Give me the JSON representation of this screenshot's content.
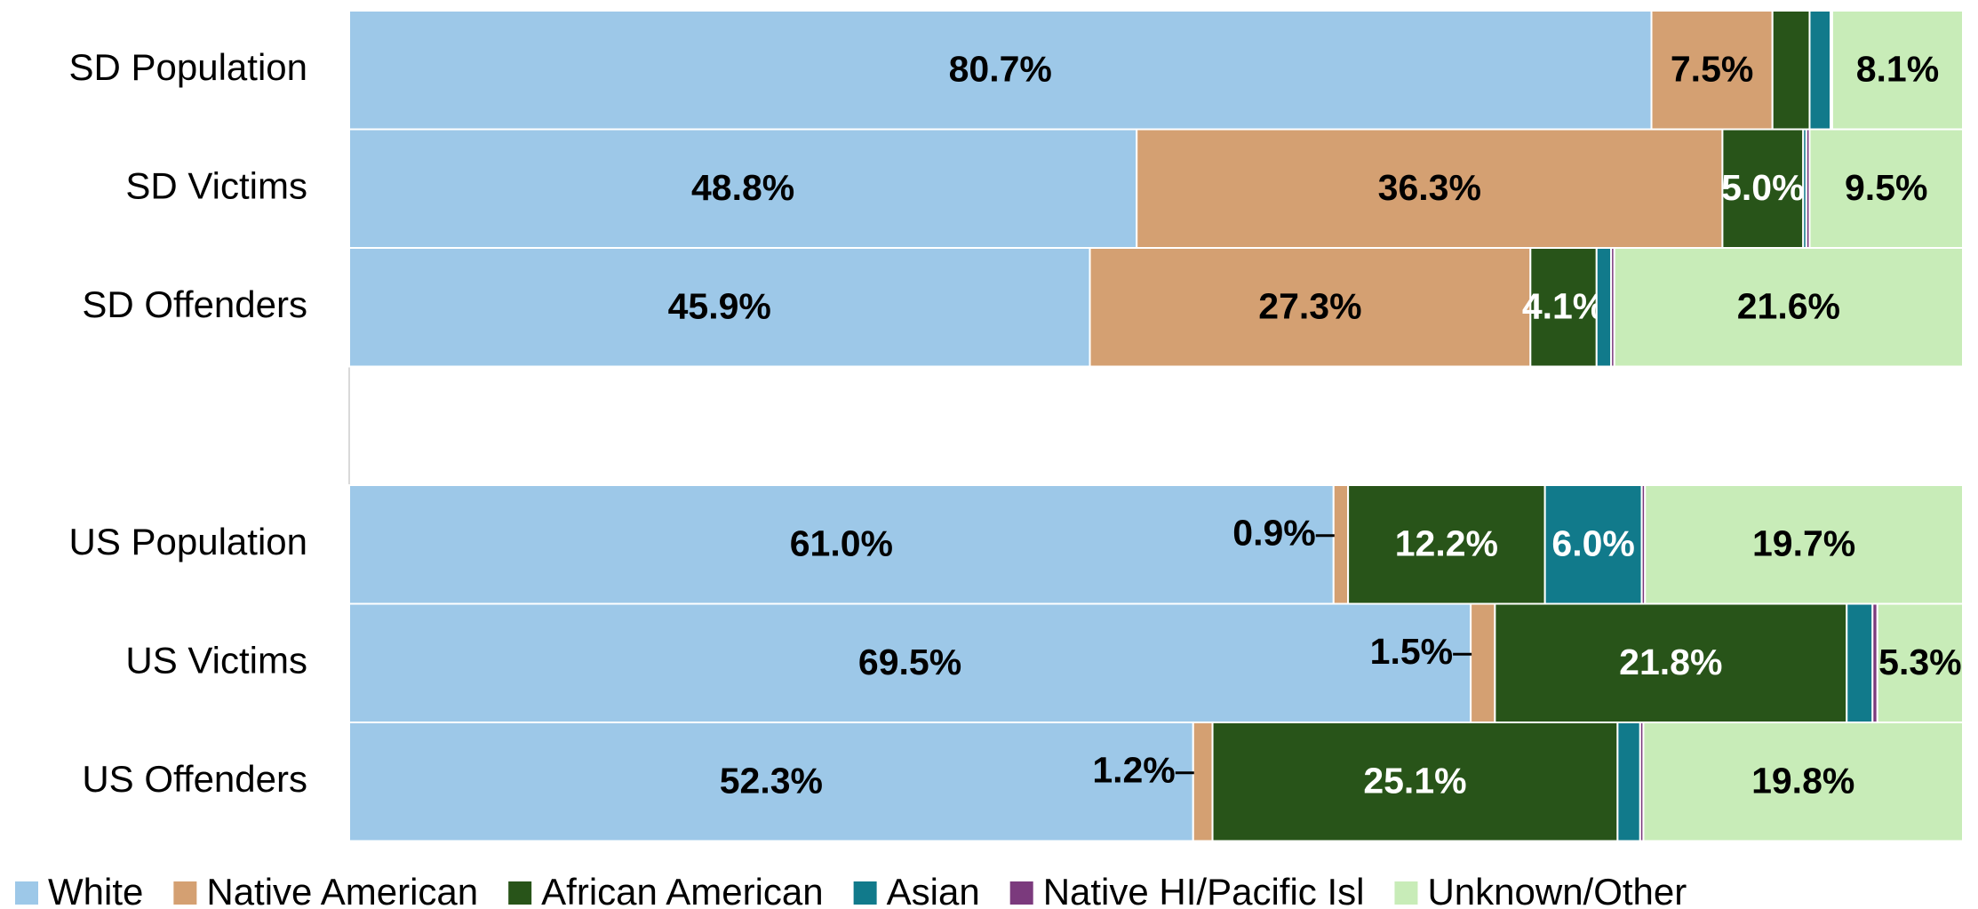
{
  "chart_data": {
    "type": "stacked_bar_horizontal",
    "categories": [
      "SD Population",
      "SD Victims",
      "SD Offenders",
      null,
      "US Population",
      "US Victims",
      "US Offenders"
    ],
    "xlim": [
      0,
      100
    ],
    "series": [
      {
        "name": "White",
        "color": "#9dc8e8",
        "values": [
          80.7,
          48.8,
          45.9,
          null,
          61.0,
          69.5,
          52.3
        ],
        "value_labels": [
          "80.7%",
          "48.8%",
          "45.9%",
          null,
          "61.0%",
          "69.5%",
          "52.3%"
        ]
      },
      {
        "name": "Native American",
        "color": "#d4a072",
        "values": [
          7.5,
          36.3,
          27.3,
          null,
          0.9,
          1.5,
          1.2
        ],
        "value_labels": [
          "7.5%",
          "36.3%",
          "27.3%",
          null,
          "0.9%",
          "1.5%",
          "1.2%"
        ]
      },
      {
        "name": "African American",
        "color": "#285419",
        "values": [
          2.3,
          5.0,
          4.1,
          null,
          12.2,
          21.8,
          25.1
        ],
        "value_labels": [
          null,
          "5.0%",
          "4.1%",
          null,
          "12.2%",
          "21.8%",
          "25.1%"
        ]
      },
      {
        "name": "Asian",
        "color": "#117a8b",
        "values": [
          1.3,
          0.2,
          0.9,
          null,
          6.0,
          1.6,
          1.4
        ],
        "value_labels": [
          null,
          null,
          null,
          null,
          "6.0%",
          null,
          null
        ]
      },
      {
        "name": "Native HI/Pacific Isl",
        "color": "#7b3a7d",
        "values": [
          0.1,
          0.2,
          0.2,
          null,
          0.2,
          0.3,
          0.2
        ],
        "value_labels": [
          null,
          null,
          null,
          null,
          null,
          null,
          null
        ]
      },
      {
        "name": "Unknown/Other",
        "color": "#c8ecb8",
        "values": [
          8.1,
          9.5,
          21.6,
          null,
          19.7,
          5.3,
          19.8
        ],
        "value_labels": [
          "8.1%",
          "9.5%",
          "21.6%",
          null,
          "19.7%",
          "5.3%",
          "19.8%"
        ]
      }
    ]
  }
}
